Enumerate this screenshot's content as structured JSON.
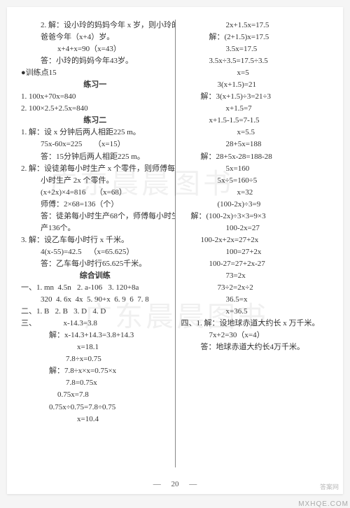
{
  "left": [
    {
      "cls": "indent2",
      "t": "2. 解：设小玲的妈妈今年 x 岁，则小玲的"
    },
    {
      "cls": "indent2",
      "t": "爸爸今年（x+4）岁。"
    },
    {
      "cls": "indent4",
      "t": "x+4+x=90（x=43）"
    },
    {
      "cls": "indent2",
      "t": "答：小玲的妈妈今年43岁。"
    },
    {
      "cls": "",
      "t": "●训练点15"
    },
    {
      "cls": "center",
      "t": "练习一"
    },
    {
      "cls": "",
      "t": "1. 100x+70x=840"
    },
    {
      "cls": "",
      "t": "2. 100×2.5+2.5x=840"
    },
    {
      "cls": "center",
      "t": "练习二"
    },
    {
      "cls": "",
      "t": "1. 解：设 x 分钟后两人相距225 m。"
    },
    {
      "cls": "indent2",
      "t": "75x-60x=225      （x=15）"
    },
    {
      "cls": "indent2",
      "t": "答：15分钟后两人相距225 m。"
    },
    {
      "cls": "",
      "t": "2. 解：设徒弟每小时生产 x 个零件，则师傅每"
    },
    {
      "cls": "indent2",
      "t": "小时生产 2x 个零件。"
    },
    {
      "cls": "indent2",
      "t": "(x+2x)×4=816     （x=68）"
    },
    {
      "cls": "indent2",
      "t": "师傅：2×68=136（个）"
    },
    {
      "cls": "indent2",
      "t": "答：徒弟每小时生产68个，师傅每小时生"
    },
    {
      "cls": "indent2",
      "t": "产136个。"
    },
    {
      "cls": "",
      "t": "3. 解：设乙车每小时行 x 千米。"
    },
    {
      "cls": "indent2",
      "t": "4(x-55)=42.5    （x=65.625）"
    },
    {
      "cls": "indent2",
      "t": "答：乙车每小时行65.625千米。"
    },
    {
      "cls": "center",
      "t": "综合训练"
    },
    {
      "cls": "",
      "t": "一、1. mn  4.5n   2. a-106   3. 120+8a"
    },
    {
      "cls": "indent2",
      "t": "320  4. 6x  4x  5. 90+x  6. 9  6  7. 8"
    },
    {
      "cls": "",
      "t": "二、1. B   2. B   3. D   4. D"
    },
    {
      "cls": "",
      "t": "三、              x-14.3=3.8"
    },
    {
      "cls": "indent3",
      "t": "解：x-14.3+14.3=3.8+14.3"
    },
    {
      "cls": "indent6",
      "t": "x=18.1"
    },
    {
      "cls": "indent5",
      "t": "7.8÷x=0.75"
    },
    {
      "cls": "indent3",
      "t": "解：7.8÷x×x=0.75×x"
    },
    {
      "cls": "indent5",
      "t": "7.8=0.75x"
    },
    {
      "cls": "indent4",
      "t": "0.75x=7.8"
    },
    {
      "cls": "indent3",
      "t": "0.75x÷0.75=7.8÷0.75"
    },
    {
      "cls": "indent6",
      "t": "x=10.4"
    }
  ],
  "right": [
    {
      "cls": "indent5",
      "t": "2x+1.5x=17.5"
    },
    {
      "cls": "indent3",
      "t": "解：(2+1.5)x=17.5"
    },
    {
      "cls": "indent5",
      "t": "3.5x=17.5"
    },
    {
      "cls": "indent3",
      "t": "3.5x÷3.5=17.5÷3.5"
    },
    {
      "cls": "indent6",
      "t": "x=5"
    },
    {
      "cls": "indent4",
      "t": "3(x+1.5)=21"
    },
    {
      "cls": "indent2",
      "t": "解：3(x+1.5)÷3=21÷3"
    },
    {
      "cls": "indent5",
      "t": "x+1.5=7"
    },
    {
      "cls": "indent3",
      "t": "x+1.5-1.5=7-1.5"
    },
    {
      "cls": "indent6",
      "t": "x=5.5"
    },
    {
      "cls": "indent5",
      "t": "28+5x=188"
    },
    {
      "cls": "indent2",
      "t": "解：28+5x-28=188-28"
    },
    {
      "cls": "indent5",
      "t": "5x=160"
    },
    {
      "cls": "indent4",
      "t": "5x÷5=160÷5"
    },
    {
      "cls": "indent6",
      "t": "x=32"
    },
    {
      "cls": "indent4",
      "t": "(100-2x)÷3=9"
    },
    {
      "cls": "indent1",
      "t": "解：(100-2x)÷3×3=9×3"
    },
    {
      "cls": "indent5",
      "t": "100-2x=27"
    },
    {
      "cls": "indent2",
      "t": "100-2x+2x=27+2x"
    },
    {
      "cls": "indent5",
      "t": "100=27+2x"
    },
    {
      "cls": "indent3",
      "t": "100-27=27+2x-27"
    },
    {
      "cls": "indent5",
      "t": "73=2x"
    },
    {
      "cls": "indent4",
      "t": "73÷2=2x÷2"
    },
    {
      "cls": "indent5",
      "t": "36.5=x"
    },
    {
      "cls": "indent5",
      "t": "x=36.5"
    },
    {
      "cls": "",
      "t": "四、1. 解：设地球赤道大约长 x 万千米。"
    },
    {
      "cls": "indent3",
      "t": "7x+2=30（x=4）"
    },
    {
      "cls": "indent2",
      "t": "答：地球赤道大约长4万千米。"
    }
  ],
  "pageNumber": "20",
  "watermark1": "广东晨晨图书",
  "watermark2": "广东晨晨图书",
  "cornerText": "答案网",
  "outerCorner": "MXHQE.COM"
}
